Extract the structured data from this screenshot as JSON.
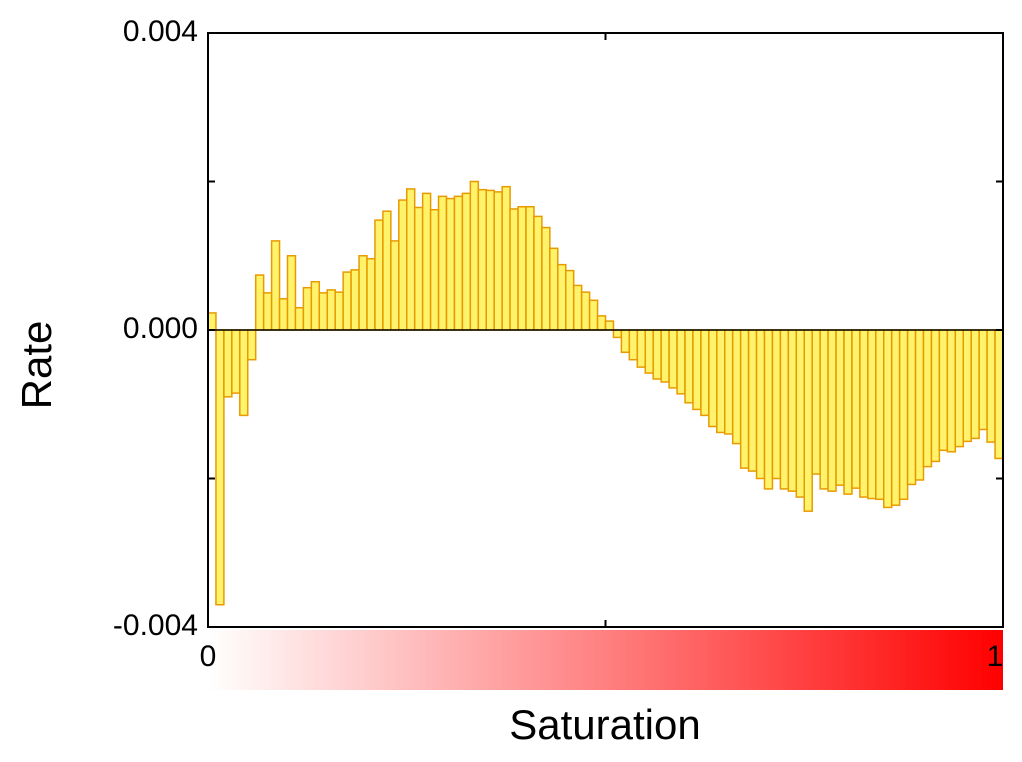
{
  "chart_data": {
    "type": "histogram",
    "xlabel": "Saturation",
    "ylabel": "Rate",
    "bins": [
      0,
      0.01,
      0.02,
      0.03,
      0.04,
      0.05,
      0.06,
      0.07,
      0.08,
      0.09,
      0.1,
      0.11,
      0.12,
      0.13,
      0.14,
      0.15,
      0.16,
      0.17,
      0.18,
      0.19,
      0.2,
      0.21,
      0.22,
      0.23,
      0.24,
      0.25,
      0.26,
      0.27,
      0.28,
      0.29,
      0.3,
      0.31,
      0.32,
      0.33,
      0.34,
      0.35,
      0.36,
      0.37,
      0.38,
      0.39,
      0.4,
      0.41,
      0.42,
      0.43,
      0.44,
      0.45,
      0.46,
      0.47,
      0.48,
      0.49,
      0.5,
      0.51,
      0.52,
      0.53,
      0.54,
      0.55,
      0.56,
      0.57,
      0.58,
      0.59,
      0.6,
      0.61,
      0.62,
      0.63,
      0.64,
      0.65,
      0.66,
      0.67,
      0.68,
      0.69,
      0.7,
      0.71,
      0.72,
      0.73,
      0.74,
      0.75,
      0.76,
      0.77,
      0.78,
      0.79,
      0.8,
      0.81,
      0.82,
      0.83,
      0.84,
      0.85,
      0.86,
      0.87,
      0.88,
      0.89,
      0.9,
      0.91,
      0.92,
      0.93,
      0.94,
      0.95,
      0.96,
      0.97,
      0.98,
      0.99,
      1
    ],
    "values": [
      0.00023,
      -0.0037,
      -0.0009,
      -0.00085,
      -0.00115,
      -0.0004,
      0.00074,
      0.0005,
      0.0012,
      0.00042,
      0.001,
      0.0003,
      0.00057,
      0.00065,
      0.0005,
      0.00054,
      0.00051,
      0.00078,
      0.00081,
      0.001,
      0.00096,
      0.00148,
      0.0016,
      0.0012,
      0.00175,
      0.0019,
      0.00165,
      0.00184,
      0.00162,
      0.0018,
      0.00177,
      0.0018,
      0.00184,
      0.002,
      0.00189,
      0.00188,
      0.00186,
      0.00193,
      0.00163,
      0.00166,
      0.00166,
      0.00153,
      0.00138,
      0.0011,
      0.00088,
      0.0008,
      0.0006,
      0.00051,
      0.0004,
      0.00019,
      0.00012,
      -0.0001,
      -0.0003,
      -0.0004,
      -0.0005,
      -0.00058,
      -0.00066,
      -0.0007,
      -0.00078,
      -0.00086,
      -0.00098,
      -0.00107,
      -0.00115,
      -0.0013,
      -0.00138,
      -0.0014,
      -0.00153,
      -0.00186,
      -0.0019,
      -0.002,
      -0.00214,
      -0.002,
      -0.00214,
      -0.00217,
      -0.00225,
      -0.00244,
      -0.00194,
      -0.00214,
      -0.00217,
      -0.00209,
      -0.00221,
      -0.00213,
      -0.00225,
      -0.00227,
      -0.00228,
      -0.00239,
      -0.00236,
      -0.00228,
      -0.00208,
      -0.00202,
      -0.00184,
      -0.00177,
      -0.00162,
      -0.00164,
      -0.00157,
      -0.0015,
      -0.00146,
      -0.00134,
      -0.00151,
      -0.00173
    ],
    "color": "#fff36b",
    "edgecolor": "#e89a00",
    "xlim": [
      0,
      1
    ],
    "xticks": [
      0,
      {
        "value": 0.5,
        "label": null
      },
      1
    ],
    "ylim": [
      -0.004,
      0.004
    ],
    "yticks": [
      -0.004,
      {
        "value": -0.002,
        "label": null
      },
      {
        "value": 0,
        "label": "0.000"
      },
      {
        "value": 0.002,
        "label": null
      },
      0.004
    ]
  }
}
